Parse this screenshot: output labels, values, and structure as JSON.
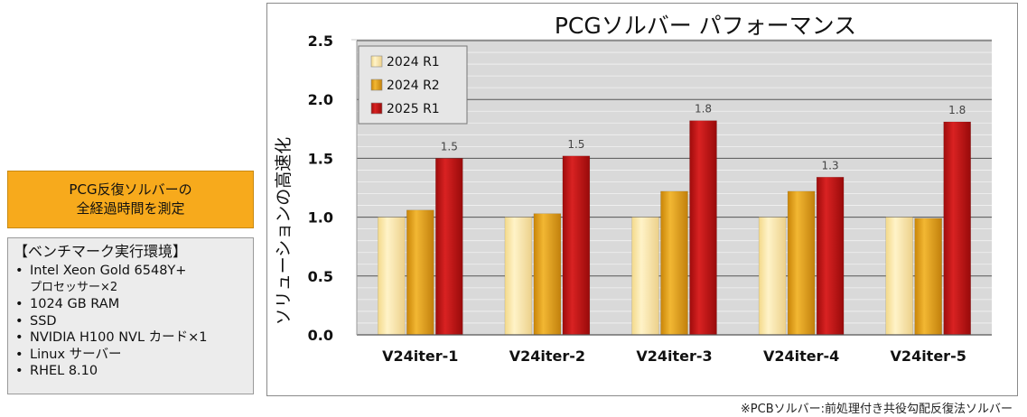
{
  "callout": {
    "line1": "PCG反復ソルバーの",
    "line2": "全経過時間を測定"
  },
  "environment": {
    "title": "【ベンチマーク実行環境】",
    "items": [
      {
        "text": "Intel Xeon Gold 6548Y+",
        "cont": "プロセッサー×2"
      },
      {
        "text": "1024 GB RAM"
      },
      {
        "text": "SSD"
      },
      {
        "text": "NVIDIA H100 NVL カード×1"
      },
      {
        "text": "Linux サーバー"
      },
      {
        "text": "RHEL 8.10"
      }
    ]
  },
  "footnote": "※PCBソルバー:前処理付き共役勾配反復法ソルバー",
  "colors": {
    "series": [
      "#fbe7a8",
      "#e6a41a",
      "#c41414"
    ],
    "plot_background": "#d9d9d9",
    "gridline": "#ffffff",
    "axis_line": "#555555"
  },
  "chart_data": {
    "type": "bar",
    "title": "PCGソルバー パフォーマンス",
    "xlabel": "",
    "ylabel": "ソリューションの高速化",
    "ylim": [
      0,
      2.5
    ],
    "yticks": [
      "0.0",
      "0.5",
      "1.0",
      "1.5",
      "2.0",
      "2.5"
    ],
    "grid": true,
    "legend_position": "top-left",
    "categories": [
      "V24iter-1",
      "V24iter-2",
      "V24iter-3",
      "V24iter-4",
      "V24iter-5"
    ],
    "series": [
      {
        "name": "2024 R1",
        "values": [
          1.0,
          1.0,
          1.0,
          1.0,
          1.0
        ],
        "labels": [
          "",
          "",
          "",
          "",
          ""
        ]
      },
      {
        "name": "2024 R2",
        "values": [
          1.06,
          1.03,
          1.22,
          1.22,
          0.99
        ],
        "labels": [
          "",
          "",
          "",
          "",
          ""
        ]
      },
      {
        "name": "2025 R1",
        "values": [
          1.5,
          1.52,
          1.82,
          1.34,
          1.81
        ],
        "labels": [
          "1.5",
          "1.5",
          "1.8",
          "1.3",
          "1.8"
        ]
      }
    ]
  }
}
